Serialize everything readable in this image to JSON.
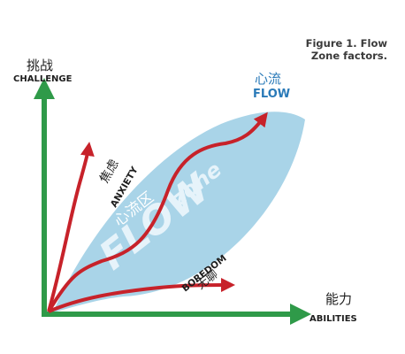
{
  "caption": {
    "line1": "Figure 1. Flow",
    "line2": "Zone factors."
  },
  "axes": {
    "y_cn": "挑战",
    "y_en": "CHALLENGE",
    "x_cn": "能力",
    "x_en": "ABILITIES"
  },
  "zone": {
    "cn": "心流区",
    "en_big": "FLOW",
    "en_small": "zone"
  },
  "curves": {
    "flow_cn": "心流",
    "flow_en": "FLOW",
    "anxiety_cn": "焦虑",
    "anxiety_en": "ANXIETY",
    "boredom_en": "BOREDOM",
    "boredom_cn": "无聊"
  },
  "colors": {
    "axis": "#2f9a49",
    "curve": "#c7222a",
    "zone": "#a9d4e8",
    "flow_label": "#2a7ab8",
    "text": "#1e1e1e"
  }
}
